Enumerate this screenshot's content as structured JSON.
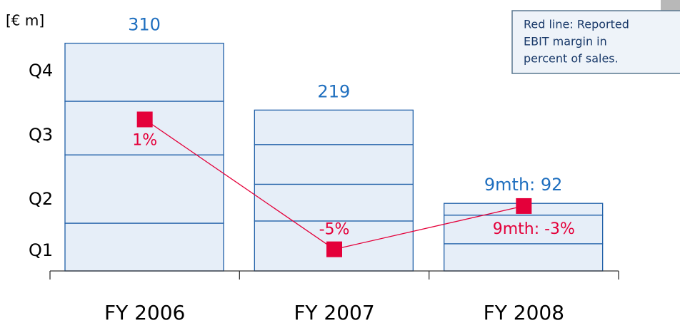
{
  "chart_data": {
    "type": "bar",
    "unit_label": "[€ m]",
    "annotation": [
      "Red line: Reported",
      "EBIT margin in",
      "percent of sales."
    ],
    "categories": [
      "FY 2006",
      "FY 2007",
      "FY 2008"
    ],
    "series": [
      {
        "name": "Q1",
        "color": "#e6eef8",
        "values": [
          65,
          68,
          37
        ]
      },
      {
        "name": "Q2",
        "color": "#e6eef8",
        "values": [
          93,
          50,
          39
        ]
      },
      {
        "name": "Q3",
        "color": "#e6eef8",
        "values": [
          73,
          54,
          16
        ]
      },
      {
        "name": "Q4",
        "color": "#e6eef8",
        "values": [
          79,
          47,
          null
        ]
      }
    ],
    "totals": [
      310,
      219,
      92
    ],
    "total_labels": [
      "310",
      "219",
      "9mth: 92"
    ],
    "ylim": [
      0,
      330
    ],
    "line": {
      "name": "Reported EBIT margin",
      "color": "#e4003a",
      "axis": "y2",
      "values": [
        1,
        -5,
        -3
      ],
      "value_labels": [
        "1%",
        "-5%",
        "9mth: -3%"
      ]
    },
    "y2lim": [
      -6,
      5.2
    ],
    "bar_edge_color": "#1f5fa8"
  }
}
